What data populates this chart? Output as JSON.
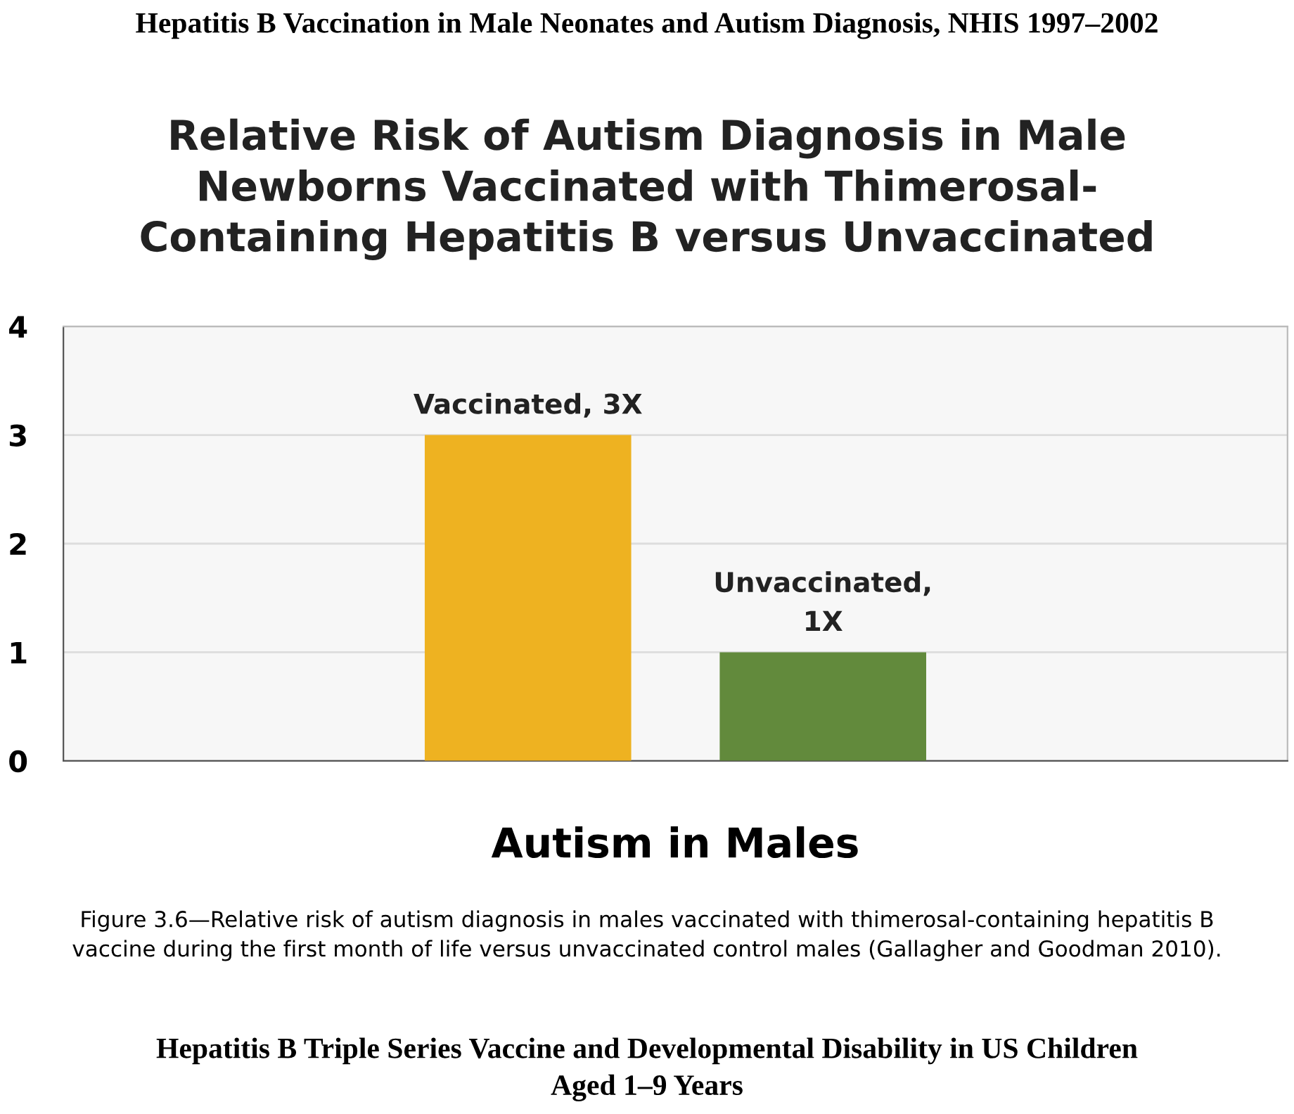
{
  "chart_data": {
    "type": "bar",
    "title": "Hepatitis B Vaccination in Male Neonates and Autism Diagnosis, NHIS 1997–2002",
    "subtitle": "Relative Risk of Autism Diagnosis in Male\nNewborns Vaccinated with Thimerosal-\nContaining Hepatitis B versus Unvaccinated",
    "xlabel": "Autism in Males",
    "categories": [
      null,
      null
    ],
    "values": [
      3,
      1
    ],
    "colors": [
      "#eeb221",
      "#628a3c"
    ],
    "value_labels": [
      "Vaccinated, 3X",
      "Unvaccinated,\n1X"
    ],
    "ylim": [
      0,
      4
    ],
    "yticks": [
      0,
      1,
      2,
      3,
      4
    ],
    "grid": "y",
    "legend": false,
    "annotations": [
      "Figure 3.6—Relative risk of autism diagnosis in males vaccinated with thimerosal-containing hepatitis B\nvaccine during the first month of life versus unvaccinated control males (Gallagher and Goodman 2010).",
      "Hepatitis B Triple Series Vaccine and Developmental Disability in US Children\nAged 1–9 Years"
    ]
  }
}
